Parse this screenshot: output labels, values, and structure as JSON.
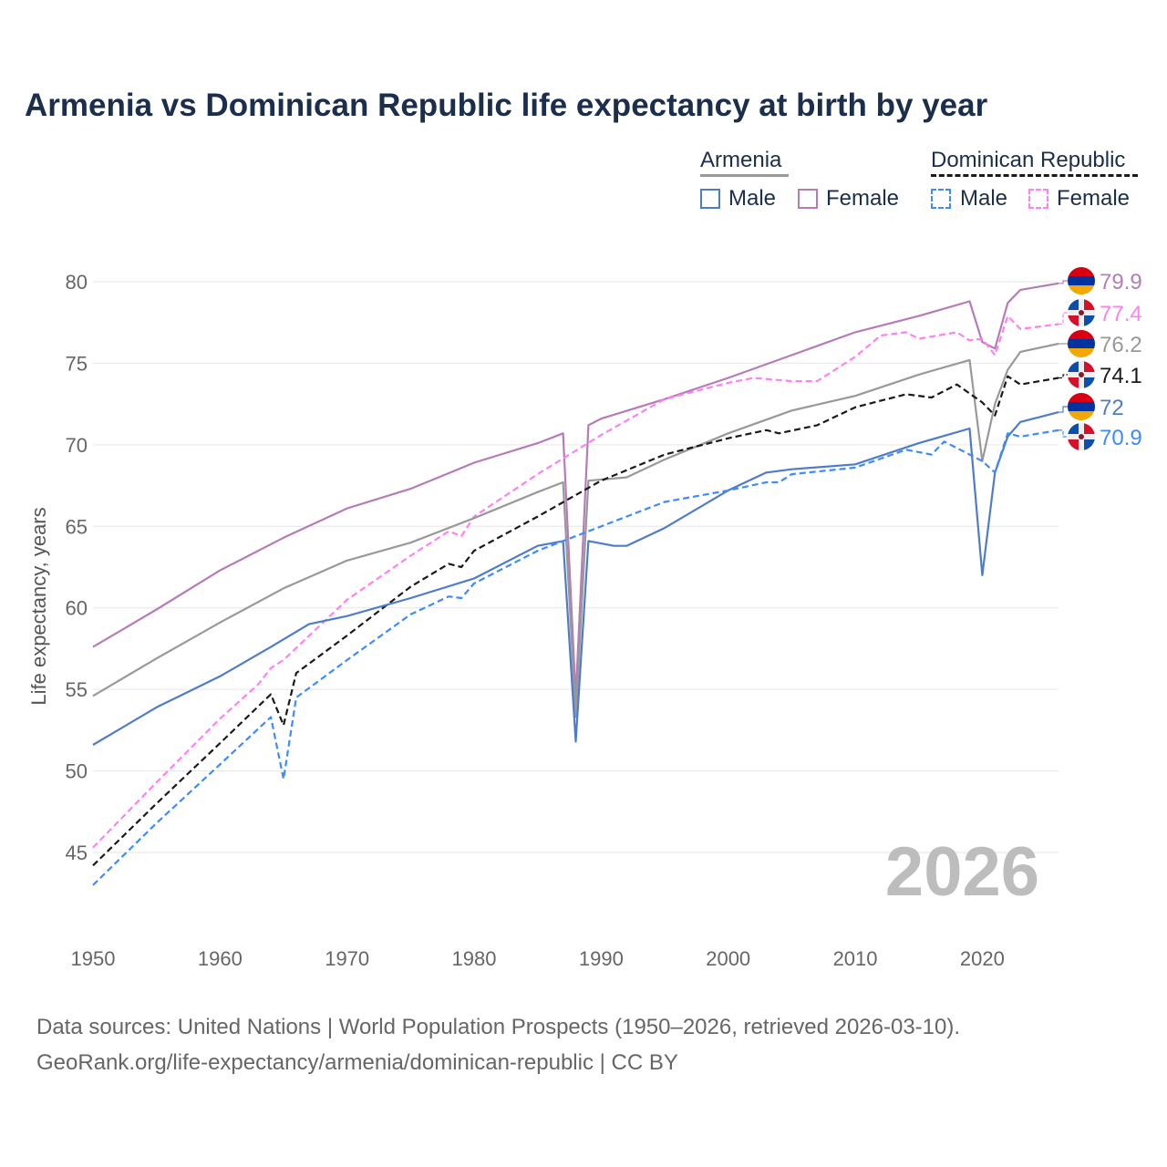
{
  "chart_data": {
    "type": "line",
    "title": "Armenia vs Dominican Republic life expectancy at birth by year",
    "xlabel": "",
    "ylabel": "Life expectancy, years",
    "xlim": [
      1950,
      2026
    ],
    "ylim": [
      42,
      82
    ],
    "xticks": [
      "1950",
      "1960",
      "1970",
      "1980",
      "1990",
      "2000",
      "2010",
      "2020"
    ],
    "yticks": [
      "45",
      "50",
      "55",
      "60",
      "65",
      "70",
      "75",
      "80"
    ],
    "grid": true,
    "watermark_year": "2026",
    "legend": {
      "groups": [
        {
          "name": "Armenia",
          "items": [
            "Male",
            "Female"
          ]
        },
        {
          "name": "Dominican Republic",
          "items": [
            "Male",
            "Female"
          ]
        }
      ],
      "placement": "top-right"
    },
    "series": [
      {
        "name": "Armenia Female",
        "country": "armenia",
        "color": "#b57cb8",
        "dashed": false,
        "end_label": "79.9",
        "points": [
          [
            1950,
            57.6
          ],
          [
            1955,
            59.9
          ],
          [
            1960,
            62.3
          ],
          [
            1965,
            64.3
          ],
          [
            1970,
            66.1
          ],
          [
            1975,
            67.3
          ],
          [
            1980,
            68.9
          ],
          [
            1985,
            70.1
          ],
          [
            1987,
            70.7
          ],
          [
            1988,
            54.5
          ],
          [
            1989,
            71.2
          ],
          [
            1990,
            71.6
          ],
          [
            1995,
            72.8
          ],
          [
            2000,
            74.1
          ],
          [
            2005,
            75.5
          ],
          [
            2010,
            76.9
          ],
          [
            2015,
            77.9
          ],
          [
            2019,
            78.8
          ],
          [
            2020,
            76.3
          ],
          [
            2021,
            75.9
          ],
          [
            2022,
            78.7
          ],
          [
            2023,
            79.5
          ],
          [
            2026,
            79.9
          ]
        ]
      },
      {
        "name": "Dominican Republic Female",
        "country": "dominican-republic",
        "color": "#ff80f0",
        "dashed": true,
        "end_label": "77.4",
        "points": [
          [
            1950,
            45.3
          ],
          [
            1955,
            49.3
          ],
          [
            1960,
            53.2
          ],
          [
            1963,
            55.3
          ],
          [
            1964,
            56.3
          ],
          [
            1965,
            56.8
          ],
          [
            1970,
            60.5
          ],
          [
            1975,
            63.2
          ],
          [
            1978,
            64.7
          ],
          [
            1979,
            64.4
          ],
          [
            1980,
            65.6
          ],
          [
            1985,
            68.2
          ],
          [
            1990,
            70.6
          ],
          [
            1995,
            72.8
          ],
          [
            2000,
            73.8
          ],
          [
            2002,
            74.1
          ],
          [
            2005,
            73.9
          ],
          [
            2007,
            73.9
          ],
          [
            2010,
            75.4
          ],
          [
            2012,
            76.7
          ],
          [
            2014,
            76.9
          ],
          [
            2015,
            76.5
          ],
          [
            2018,
            76.9
          ],
          [
            2019,
            76.4
          ],
          [
            2020,
            76.5
          ],
          [
            2021,
            75.5
          ],
          [
            2022,
            77.9
          ],
          [
            2023,
            77.1
          ],
          [
            2026,
            77.4
          ]
        ]
      },
      {
        "name": "Armenia",
        "country": "armenia",
        "color": "#999999",
        "dashed": false,
        "end_label": "76.2",
        "points": [
          [
            1950,
            54.6
          ],
          [
            1955,
            56.9
          ],
          [
            1960,
            59.1
          ],
          [
            1965,
            61.2
          ],
          [
            1970,
            62.9
          ],
          [
            1975,
            64.0
          ],
          [
            1980,
            65.5
          ],
          [
            1985,
            67.1
          ],
          [
            1987,
            67.7
          ],
          [
            1988,
            53.3
          ],
          [
            1989,
            67.8
          ],
          [
            1992,
            68.0
          ],
          [
            1995,
            69.1
          ],
          [
            2000,
            70.7
          ],
          [
            2005,
            72.1
          ],
          [
            2010,
            73.0
          ],
          [
            2015,
            74.3
          ],
          [
            2019,
            75.2
          ],
          [
            2020,
            69.0
          ],
          [
            2021,
            72.5
          ],
          [
            2022,
            74.6
          ],
          [
            2023,
            75.7
          ],
          [
            2026,
            76.2
          ]
        ]
      },
      {
        "name": "Dominican Republic",
        "country": "dominican-republic",
        "color": "#1a1a1a",
        "dashed": true,
        "end_label": "74.1",
        "points": [
          [
            1950,
            44.2
          ],
          [
            1955,
            48.0
          ],
          [
            1960,
            51.7
          ],
          [
            1964,
            54.7
          ],
          [
            1965,
            52.8
          ],
          [
            1966,
            56.0
          ],
          [
            1970,
            58.3
          ],
          [
            1975,
            61.3
          ],
          [
            1978,
            62.7
          ],
          [
            1979,
            62.5
          ],
          [
            1980,
            63.5
          ],
          [
            1985,
            65.6
          ],
          [
            1990,
            67.8
          ],
          [
            1995,
            69.4
          ],
          [
            2000,
            70.4
          ],
          [
            2003,
            70.9
          ],
          [
            2004,
            70.7
          ],
          [
            2007,
            71.2
          ],
          [
            2010,
            72.3
          ],
          [
            2014,
            73.1
          ],
          [
            2016,
            72.9
          ],
          [
            2018,
            73.7
          ],
          [
            2020,
            72.6
          ],
          [
            2021,
            71.8
          ],
          [
            2022,
            74.2
          ],
          [
            2023,
            73.7
          ],
          [
            2026,
            74.1
          ]
        ]
      },
      {
        "name": "Armenia Male",
        "country": "armenia",
        "color": "#4f7cc9",
        "dashed": false,
        "end_label": "72",
        "points": [
          [
            1950,
            51.6
          ],
          [
            1955,
            53.9
          ],
          [
            1960,
            55.8
          ],
          [
            1964,
            57.6
          ],
          [
            1967,
            59.0
          ],
          [
            1970,
            59.5
          ],
          [
            1975,
            60.6
          ],
          [
            1980,
            61.8
          ],
          [
            1985,
            63.8
          ],
          [
            1987,
            64.1
          ],
          [
            1988,
            51.8
          ],
          [
            1989,
            64.1
          ],
          [
            1991,
            63.8
          ],
          [
            1992,
            63.8
          ],
          [
            1995,
            64.9
          ],
          [
            2000,
            67.2
          ],
          [
            2003,
            68.3
          ],
          [
            2005,
            68.5
          ],
          [
            2010,
            68.8
          ],
          [
            2015,
            70.1
          ],
          [
            2019,
            71.0
          ],
          [
            2020,
            62.0
          ],
          [
            2021,
            68.3
          ],
          [
            2022,
            70.5
          ],
          [
            2023,
            71.4
          ],
          [
            2026,
            72.0
          ]
        ]
      },
      {
        "name": "Dominican Republic Male",
        "country": "dominican-republic",
        "color": "#3d8bff",
        "dashed": true,
        "end_label": "70.9",
        "points": [
          [
            1950,
            43.0
          ],
          [
            1955,
            46.8
          ],
          [
            1960,
            50.4
          ],
          [
            1964,
            53.3
          ],
          [
            1965,
            49.5
          ],
          [
            1966,
            54.5
          ],
          [
            1970,
            56.8
          ],
          [
            1975,
            59.6
          ],
          [
            1978,
            60.7
          ],
          [
            1979,
            60.6
          ],
          [
            1980,
            61.5
          ],
          [
            1985,
            63.5
          ],
          [
            1990,
            65.0
          ],
          [
            1995,
            66.5
          ],
          [
            2000,
            67.2
          ],
          [
            2003,
            67.7
          ],
          [
            2004,
            67.7
          ],
          [
            2005,
            68.2
          ],
          [
            2010,
            68.6
          ],
          [
            2014,
            69.7
          ],
          [
            2016,
            69.4
          ],
          [
            2017,
            70.2
          ],
          [
            2020,
            69.0
          ],
          [
            2021,
            68.3
          ],
          [
            2022,
            70.7
          ],
          [
            2023,
            70.5
          ],
          [
            2026,
            70.9
          ]
        ]
      }
    ]
  },
  "source": {
    "line1": "Data sources: United Nations | World Population Prospects (1950–2026, retrieved 2026-03-10).",
    "line2": "GeoRank.org/life-expectancy/armenia/dominican-republic | CC BY"
  }
}
